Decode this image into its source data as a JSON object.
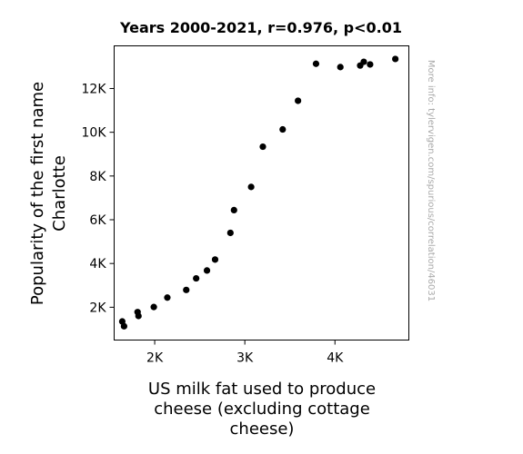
{
  "chart_data": {
    "type": "scatter",
    "title": "Years 2000-2021, r=0.976, p<0.01",
    "xlabel": [
      "US milk fat used to produce",
      "cheese (excluding cottage",
      "cheese)"
    ],
    "ylabel": [
      "Popularity of the first name",
      "Charlotte"
    ],
    "watermark": "More info: tylervigen.com/spurious/correlation/46031",
    "xlim": [
      1550,
      4820
    ],
    "ylim": [
      500,
      13950
    ],
    "xticks": [
      {
        "value": 2000,
        "label": "2K"
      },
      {
        "value": 3000,
        "label": "3K"
      },
      {
        "value": 4000,
        "label": "4K"
      }
    ],
    "yticks": [
      {
        "value": 2000,
        "label": "2K"
      },
      {
        "value": 4000,
        "label": "4K"
      },
      {
        "value": 6000,
        "label": "6K"
      },
      {
        "value": 8000,
        "label": "8K"
      },
      {
        "value": 10000,
        "label": "10K"
      },
      {
        "value": 12000,
        "label": "12K"
      }
    ],
    "grid": false,
    "marker_color": "#000000",
    "points": [
      {
        "x": 1640,
        "y": 1350
      },
      {
        "x": 1660,
        "y": 1130
      },
      {
        "x": 1810,
        "y": 1780
      },
      {
        "x": 1820,
        "y": 1600
      },
      {
        "x": 1990,
        "y": 2010
      },
      {
        "x": 2140,
        "y": 2440
      },
      {
        "x": 2350,
        "y": 2790
      },
      {
        "x": 2460,
        "y": 3320
      },
      {
        "x": 2580,
        "y": 3680
      },
      {
        "x": 2670,
        "y": 4180
      },
      {
        "x": 2840,
        "y": 5400
      },
      {
        "x": 2880,
        "y": 6440
      },
      {
        "x": 3070,
        "y": 7500
      },
      {
        "x": 3200,
        "y": 9340
      },
      {
        "x": 3420,
        "y": 10130
      },
      {
        "x": 3590,
        "y": 11440
      },
      {
        "x": 3790,
        "y": 13130
      },
      {
        "x": 4060,
        "y": 12980
      },
      {
        "x": 4280,
        "y": 13050
      },
      {
        "x": 4320,
        "y": 13220
      },
      {
        "x": 4390,
        "y": 13100
      },
      {
        "x": 4670,
        "y": 13350
      }
    ]
  }
}
